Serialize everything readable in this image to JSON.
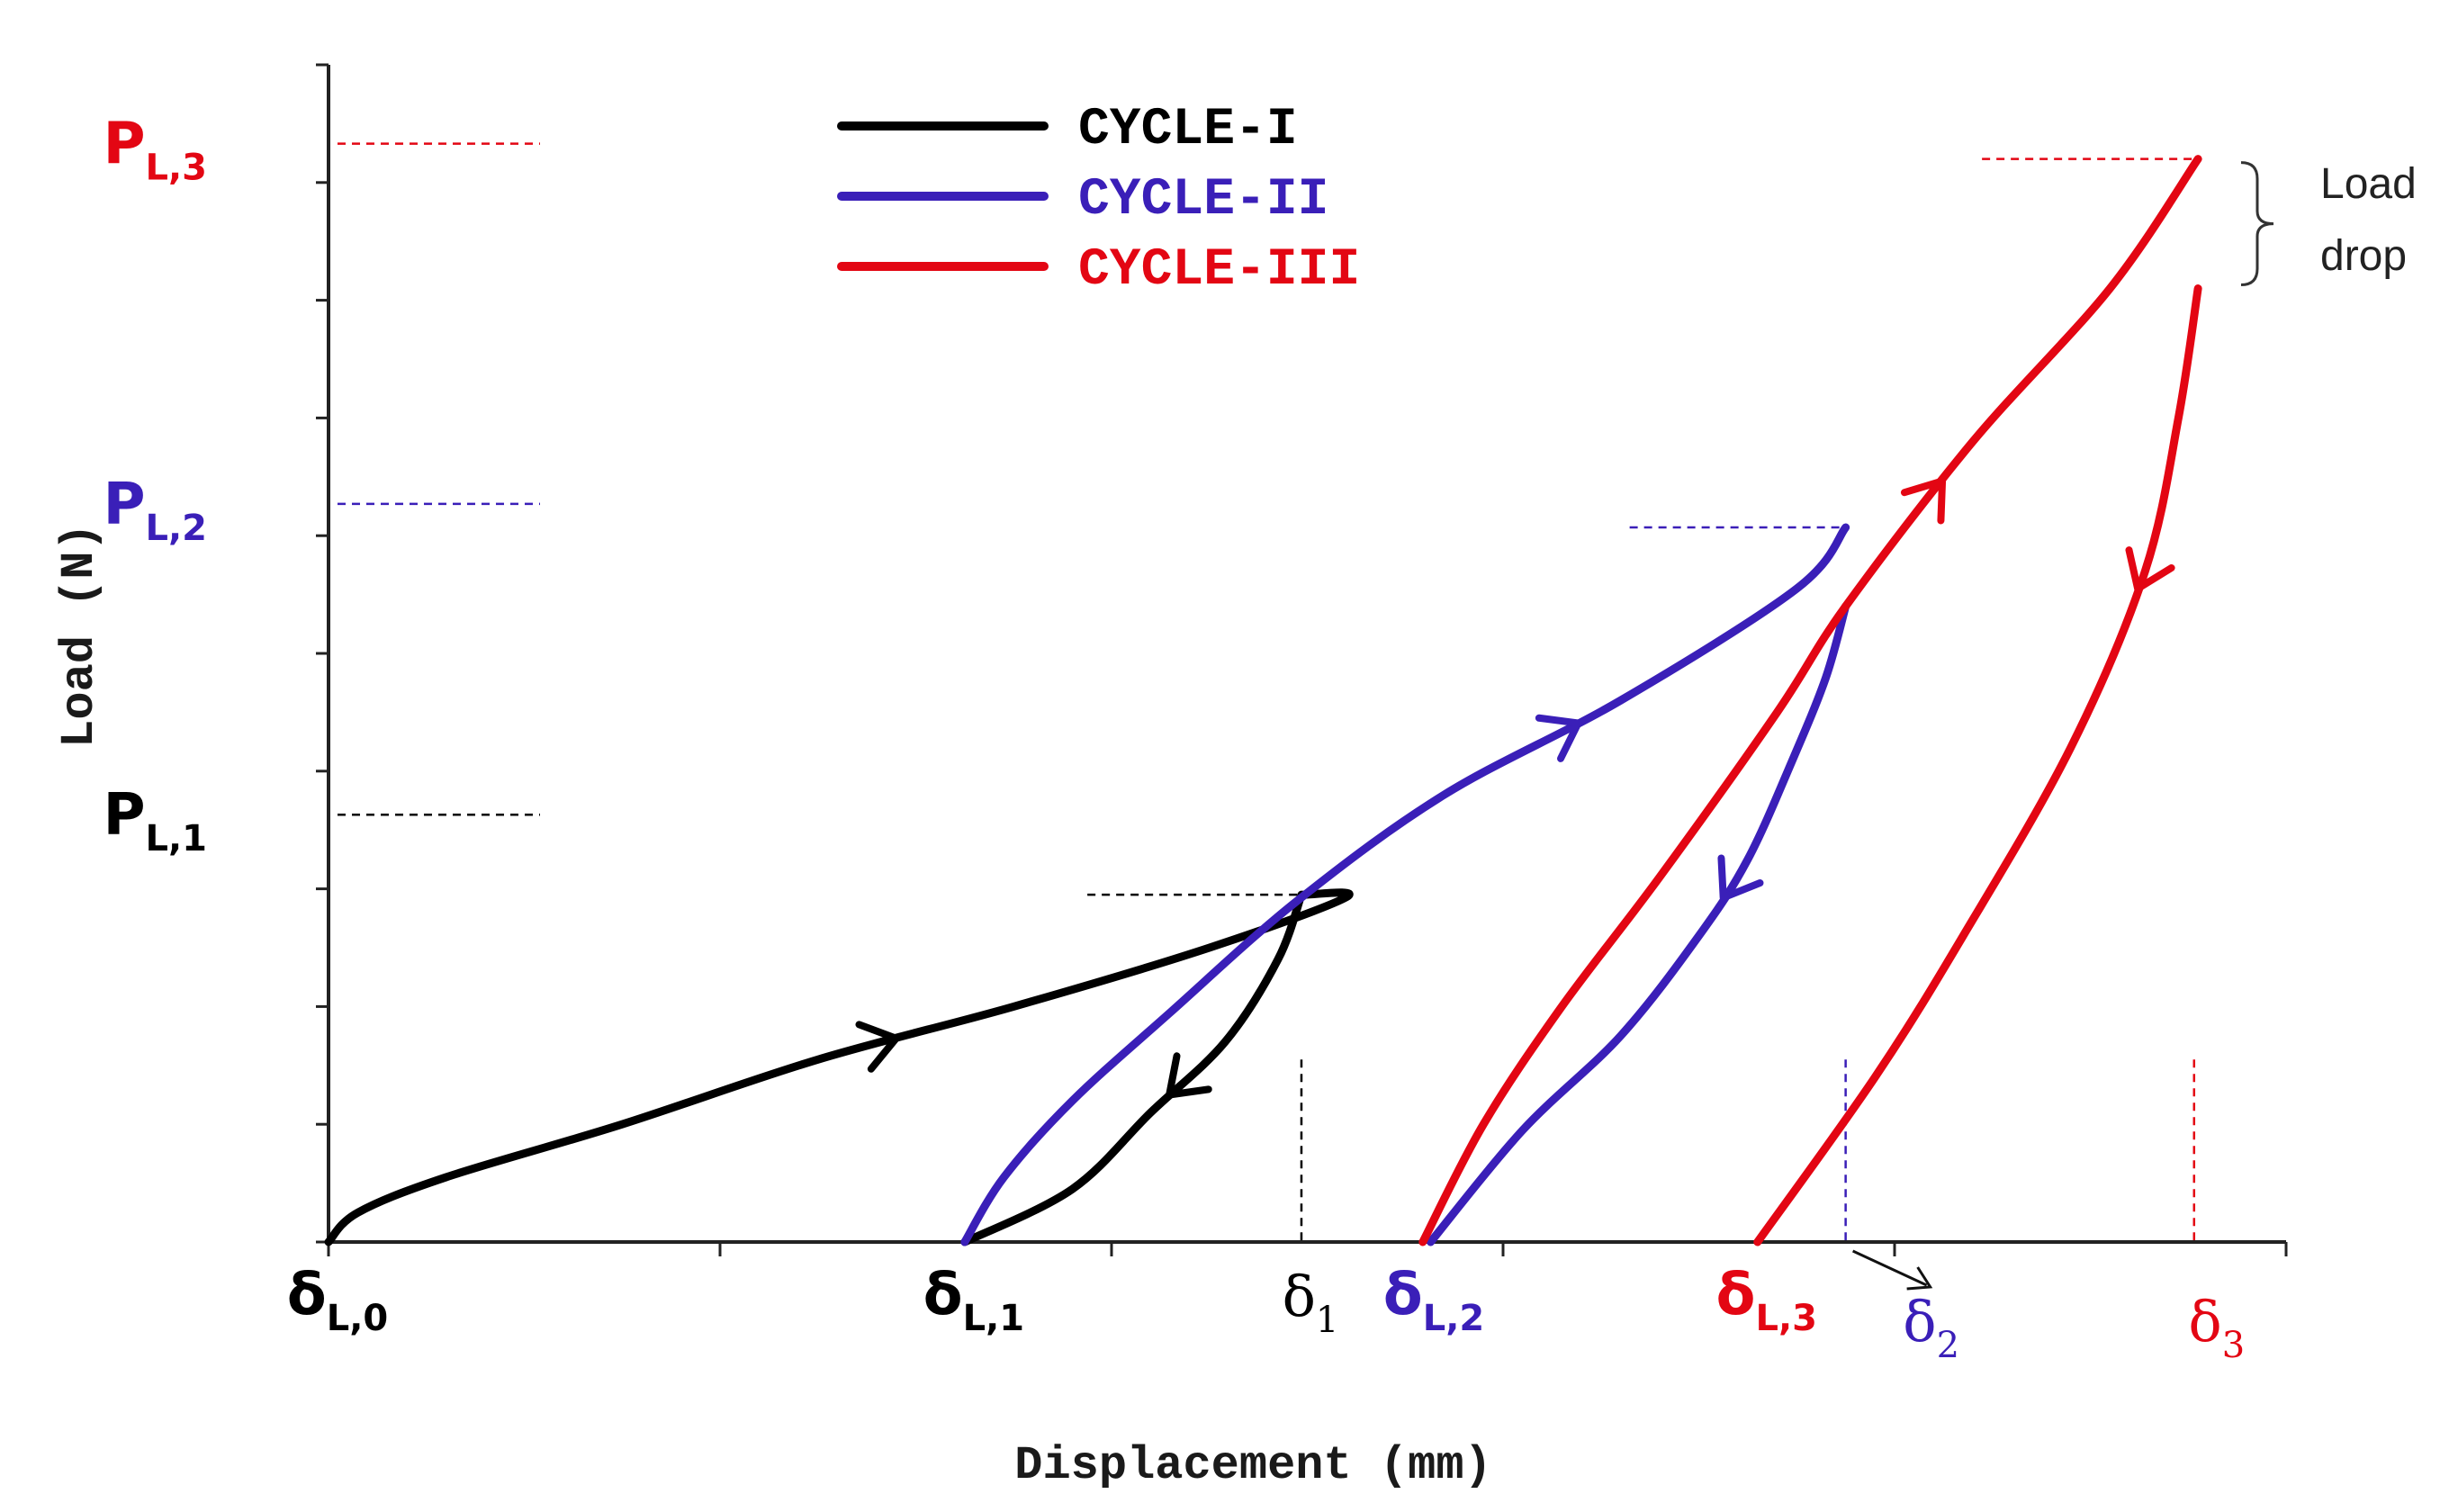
{
  "chart_data": {
    "type": "line",
    "title": "",
    "xlabel": "Displacement (mm)",
    "ylabel": "Load (N)",
    "xlim": [
      0,
      1000
    ],
    "ylim": [
      0,
      1000
    ],
    "colors": {
      "cycle1": "#000000",
      "cycle2": "#3a1fb8",
      "cycle3": "#e30613"
    },
    "legend": {
      "placement": "top-center",
      "entries": [
        {
          "name": "CYCLE-I",
          "color": "#000000"
        },
        {
          "name": "CYCLE-II",
          "color": "#3a1fb8"
        },
        {
          "name": "CYCLE-III",
          "color": "#e30613"
        }
      ]
    },
    "series": [
      {
        "name": "CYCLE-I loading",
        "color": "#000000",
        "points": [
          [
            0,
            0
          ],
          [
            15,
            25
          ],
          [
            60,
            55
          ],
          [
            150,
            100
          ],
          [
            250,
            155
          ],
          [
            350,
            200
          ],
          [
            450,
            250
          ],
          [
            520,
            293
          ],
          [
            498,
            295
          ]
        ]
      },
      {
        "name": "CYCLE-I unloading",
        "color": "#000000",
        "points": [
          [
            497,
            295
          ],
          [
            485,
            240
          ],
          [
            458,
            170
          ],
          [
            420,
            110
          ],
          [
            380,
            45
          ],
          [
            325,
            0
          ]
        ]
      },
      {
        "name": "CYCLE-II loading",
        "color": "#3a1fb8",
        "points": [
          [
            325,
            0
          ],
          [
            345,
            55
          ],
          [
            380,
            120
          ],
          [
            430,
            195
          ],
          [
            495,
            290
          ],
          [
            570,
            380
          ],
          [
            660,
            460
          ],
          [
            750,
            555
          ],
          [
            775,
            607
          ]
        ]
      },
      {
        "name": "CYCLE-II unloading",
        "color": "#3a1fb8",
        "points": [
          [
            775,
            540
          ],
          [
            765,
            480
          ],
          [
            748,
            410
          ],
          [
            725,
            325
          ],
          [
            700,
            260
          ],
          [
            660,
            175
          ],
          [
            610,
            95
          ],
          [
            563,
            0
          ]
        ]
      },
      {
        "name": "CYCLE-III loading",
        "color": "#e30613",
        "points": [
          [
            559,
            0
          ],
          [
            590,
            100
          ],
          [
            630,
            200
          ],
          [
            680,
            310
          ],
          [
            740,
            450
          ],
          [
            775,
            540
          ],
          [
            840,
            680
          ],
          [
            910,
            810
          ],
          [
            955,
            920
          ]
        ]
      },
      {
        "name": "CYCLE-III unloading",
        "color": "#e30613",
        "points": [
          [
            955,
            810
          ],
          [
            945,
            700
          ],
          [
            928,
            570
          ],
          [
            890,
            420
          ],
          [
            835,
            260
          ],
          [
            790,
            140
          ],
          [
            730,
            0
          ]
        ]
      }
    ],
    "peaks": [
      {
        "label": "P",
        "sub": "L,1",
        "series": "CYCLE-I",
        "value": 363,
        "color": "#000000"
      },
      {
        "label": "P",
        "sub": "L,2",
        "series": "CYCLE-II",
        "value": 627,
        "color": "#3a1fb8"
      },
      {
        "label": "P",
        "sub": "L,3",
        "series": "CYCLE-III",
        "value": 933,
        "color": "#e30613"
      }
    ],
    "x_markers": [
      {
        "symbol": "δ",
        "sub": "L,0",
        "x": 0,
        "color": "#000000",
        "style": "bold"
      },
      {
        "symbol": "δ",
        "sub": "L,1",
        "x": 325,
        "color": "#000000",
        "style": "bold"
      },
      {
        "symbol": "δ",
        "sub": "1",
        "x": 497,
        "color": "#000000",
        "style": "serif"
      },
      {
        "symbol": "δ",
        "sub": "L,2",
        "x": 560,
        "color": "#3a1fb8",
        "style": "bold"
      },
      {
        "symbol": "δ",
        "sub": "L,3",
        "x": 730,
        "color": "#e30613",
        "style": "bold"
      },
      {
        "symbol": "δ",
        "sub": "2",
        "x": 775,
        "color": "#3a1fb8",
        "style": "serif"
      },
      {
        "symbol": "δ",
        "sub": "3",
        "x": 953,
        "color": "#e30613",
        "style": "serif"
      }
    ],
    "annotations": [
      {
        "text": "Load drop",
        "lines": [
          "Load",
          "drop"
        ],
        "target": "CYCLE-III peak"
      }
    ],
    "grid": false
  }
}
